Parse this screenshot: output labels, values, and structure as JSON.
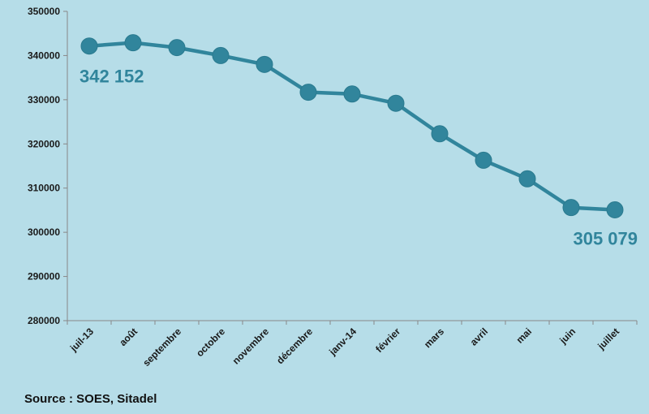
{
  "chart_data": {
    "type": "line",
    "categories": [
      "juil-13",
      "août",
      "septembre",
      "octobre",
      "novembre",
      "décembre",
      "janv-14",
      "février",
      "mars",
      "avril",
      "mai",
      "juin",
      "juillet"
    ],
    "values": [
      342152,
      342900,
      341800,
      340000,
      338000,
      331700,
      331300,
      329200,
      322300,
      316300,
      312100,
      305600,
      305079
    ],
    "ylim": [
      280000,
      350000
    ],
    "yticks": [
      "280000",
      "290000",
      "300000",
      "310000",
      "320000",
      "330000",
      "340000",
      "350000"
    ],
    "annotations": [
      {
        "text": "342 152",
        "index": 0
      },
      {
        "text": "305 079",
        "index": 12
      }
    ],
    "grid": false,
    "legend": "none",
    "colors": {
      "line": "#31859c",
      "background": "#b6dde8",
      "label": "#31859c"
    }
  },
  "footer": {
    "source": "Source : SOES,  Sitadel"
  }
}
